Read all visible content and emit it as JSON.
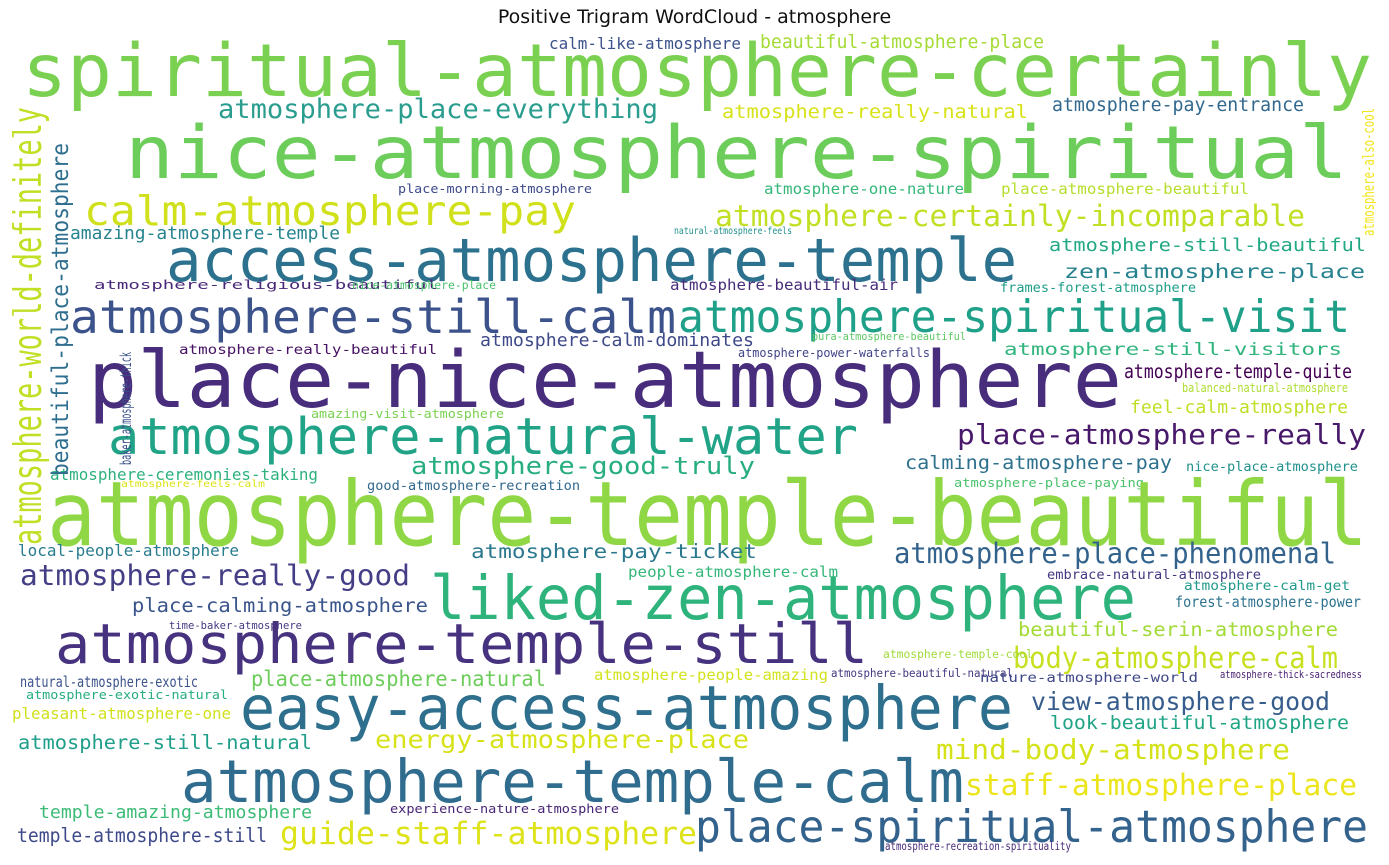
{
  "title": "Positive Trigram WordCloud - atmosphere",
  "words": [
    {
      "text": "spiritual-atmosphere-certainly",
      "color": "#7ad151"
    },
    {
      "text": "nice-atmosphere-spiritual",
      "color": "#6ccd5a"
    },
    {
      "text": "calm-like-atmosphere",
      "color": "#3b528b"
    },
    {
      "text": "beautiful-atmosphere-place",
      "color": "#a5db36"
    },
    {
      "text": "atmosphere-place-everything",
      "color": "#2a9d8f"
    },
    {
      "text": "atmosphere-really-natural",
      "color": "#d8e219"
    },
    {
      "text": "atmosphere-pay-entrance",
      "color": "#31688e"
    },
    {
      "text": "calm-atmosphere-pay",
      "color": "#d0e11c"
    },
    {
      "text": "atmosphere-certainly-incomparable",
      "color": "#c2df23"
    },
    {
      "text": "place-morning-atmosphere",
      "color": "#3e4a89"
    },
    {
      "text": "atmosphere-one-nature",
      "color": "#35b779"
    },
    {
      "text": "place-atmosphere-beautiful",
      "color": "#b5de2b"
    },
    {
      "text": "amazing-atmosphere-temple",
      "color": "#25848e"
    },
    {
      "text": "natural-atmosphere-feels",
      "color": "#21918c"
    },
    {
      "text": "access-atmosphere-temple",
      "color": "#2c728e"
    },
    {
      "text": "atmosphere-still-beautiful",
      "color": "#22a884"
    },
    {
      "text": "zen-atmosphere-place",
      "color": "#26828e"
    },
    {
      "text": "atmosphere-religious-beautiful",
      "color": "#482878"
    },
    {
      "text": "nice-atmosphere-place",
      "color": "#4ac16d"
    },
    {
      "text": "atmosphere-beautiful-air",
      "color": "#472c7a"
    },
    {
      "text": "frames-forest-atmosphere",
      "color": "#1f9e89"
    },
    {
      "text": "atmosphere-still-calm",
      "color": "#3b528b"
    },
    {
      "text": "atmosphere-spiritual-visit",
      "color": "#1fa088"
    },
    {
      "text": "pura-atmosphere-beautiful",
      "color": "#5cc863"
    },
    {
      "text": "atmosphere-calm-dominates",
      "color": "#3e4989"
    },
    {
      "text": "atmosphere-power-waterfalls",
      "color": "#414487"
    },
    {
      "text": "atmosphere-still-visitors",
      "color": "#2fb47c"
    },
    {
      "text": "atmosphere-really-beautiful",
      "color": "#471164"
    },
    {
      "text": "place-nice-atmosphere",
      "color": "#472d7b"
    },
    {
      "text": "atmosphere-temple-quite",
      "color": "#440154"
    },
    {
      "text": "balanced-natural-atmosphere",
      "color": "#addc30"
    },
    {
      "text": "amazing-visit-atmosphere",
      "color": "#7ad151"
    },
    {
      "text": "feel-calm-atmosphere",
      "color": "#bddf26"
    },
    {
      "text": "atmosphere-natural-water",
      "color": "#20a386"
    },
    {
      "text": "place-atmosphere-really",
      "color": "#48186a"
    },
    {
      "text": "atmosphere-good-truly",
      "color": "#27ad81"
    },
    {
      "text": "calming-atmosphere-pay",
      "color": "#2d708e"
    },
    {
      "text": "nice-place-atmosphere",
      "color": "#21918c"
    },
    {
      "text": "atmosphere-ceremonies-taking",
      "color": "#2db27d"
    },
    {
      "text": "atmosphere-feels-calm",
      "color": "#dde318"
    },
    {
      "text": "good-atmosphere-recreation",
      "color": "#31688e"
    },
    {
      "text": "atmosphere-place-paying",
      "color": "#4ac16d"
    },
    {
      "text": "atmosphere-temple-beautiful",
      "color": "#8fd744"
    },
    {
      "text": "local-people-atmosphere",
      "color": "#287c8e"
    },
    {
      "text": "atmosphere-pay-ticket",
      "color": "#2a788e"
    },
    {
      "text": "atmosphere-place-phenomenal",
      "color": "#33638d"
    },
    {
      "text": "atmosphere-really-good",
      "color": "#433e85"
    },
    {
      "text": "people-atmosphere-calm",
      "color": "#35b779"
    },
    {
      "text": "embrace-natural-atmosphere",
      "color": "#443983"
    },
    {
      "text": "atmosphere-calm-get",
      "color": "#1f9a8a"
    },
    {
      "text": "forest-atmosphere-power",
      "color": "#2c728e"
    },
    {
      "text": "place-calming-atmosphere",
      "color": "#3a548c"
    },
    {
      "text": "liked-zen-atmosphere",
      "color": "#2eb37c"
    },
    {
      "text": "time-baker-atmosphere",
      "color": "#453882"
    },
    {
      "text": "beautiful-serin-atmosphere",
      "color": "#a2da37"
    },
    {
      "text": "atmosphere-temple-still",
      "color": "#46327e"
    },
    {
      "text": "body-atmosphere-calm",
      "color": "#c8e020"
    },
    {
      "text": "atmosphere-temple-cool",
      "color": "#a0da39"
    },
    {
      "text": "natural-atmosphere-exotic",
      "color": "#3b528b"
    },
    {
      "text": "place-atmosphere-natural",
      "color": "#6ccd5a"
    },
    {
      "text": "atmosphere-people-amazing",
      "color": "#d2e21b"
    },
    {
      "text": "atmosphere-beautiful-natural",
      "color": "#453781"
    },
    {
      "text": "nature-atmosphere-world",
      "color": "#3f4788"
    },
    {
      "text": "atmosphere-thick-sacredness",
      "color": "#481f70"
    },
    {
      "text": "atmosphere-exotic-natural",
      "color": "#25ac82"
    },
    {
      "text": "pleasant-atmosphere-one",
      "color": "#d0e11c"
    },
    {
      "text": "easy-access-atmosphere",
      "color": "#2e6f8e"
    },
    {
      "text": "view-atmosphere-good",
      "color": "#365d8d"
    },
    {
      "text": "look-beautiful-atmosphere",
      "color": "#20a486"
    },
    {
      "text": "atmosphere-still-natural",
      "color": "#1f9e89"
    },
    {
      "text": "energy-atmosphere-place",
      "color": "#d8e219"
    },
    {
      "text": "mind-body-atmosphere",
      "color": "#d5e21a"
    },
    {
      "text": "atmosphere-temple-calm",
      "color": "#2f6c8e"
    },
    {
      "text": "staff-atmosphere-place",
      "color": "#ece51b"
    },
    {
      "text": "temple-amazing-atmosphere",
      "color": "#3bbb75"
    },
    {
      "text": "experience-nature-atmosphere",
      "color": "#482677"
    },
    {
      "text": "temple-atmosphere-still",
      "color": "#3e4989"
    },
    {
      "text": "guide-staff-atmosphere",
      "color": "#dde318"
    },
    {
      "text": "place-spiritual-atmosphere",
      "color": "#33628d"
    },
    {
      "text": "atmosphere-recreation-spirituality",
      "color": "#472a7a"
    },
    {
      "text": "atmosphere-world-definitely",
      "color": "#c0df25"
    },
    {
      "text": "beautiful-place-atmosphere",
      "color": "#2e6e8e"
    },
    {
      "text": "baker-atmosphere-thick",
      "color": "#3b528b"
    },
    {
      "text": "atmosphere-also-cool",
      "color": "#f1e51d"
    }
  ]
}
